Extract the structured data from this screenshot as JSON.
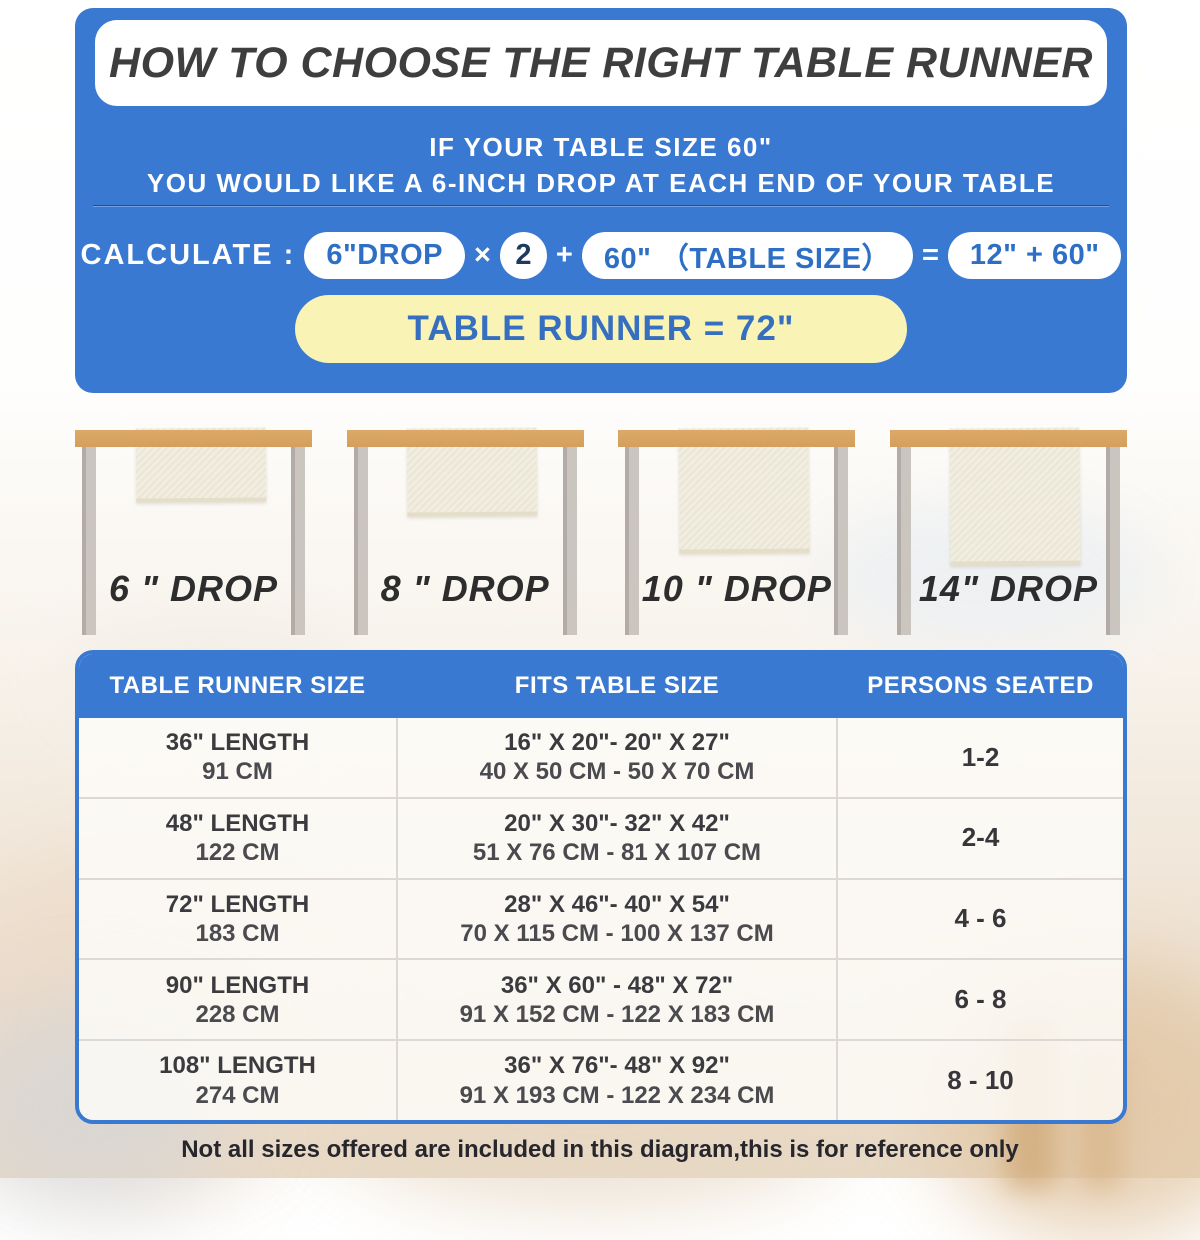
{
  "colors": {
    "panel_blue": "#3A79D1",
    "pill_text_blue": "#2D6FC4",
    "multiplier_navy": "#1D3A5F",
    "yellow_pill_bg": "#F9F3B6",
    "title_text": "#3E3E3E",
    "tabletop_tan": "#D8A462",
    "runner_cream": "#F1EDE0",
    "leg_gray": "#C6BFBA"
  },
  "header": {
    "title": "HOW TO CHOOSE THE RIGHT TABLE RUNNER",
    "subtitle_line1": "IF YOUR TABLE SIZE 60\"",
    "subtitle_line2": "YOU WOULD LIKE A 6-INCH DROP AT EACH END OF YOUR TABLE",
    "calculate_label": "CALCULATE :",
    "drop_pill": "6\"DROP",
    "times_sign": "×",
    "multiplier": "2",
    "plus_sign": "+",
    "table_size_pill": "60\" （TABLE SIZE）",
    "equals_sign": "=",
    "result_pill": "12\" + 60\"",
    "runner_result": "TABLE RUNNER = 72\""
  },
  "drop_examples": [
    {
      "label": "6 \" DROP"
    },
    {
      "label": "8 \" DROP"
    },
    {
      "label": "10 \" DROP"
    },
    {
      "label": "14\" DROP"
    }
  ],
  "size_table": {
    "columns": [
      "TABLE RUNNER SIZE",
      "FITS TABLE SIZE",
      "PERSONS SEATED"
    ],
    "rows": [
      {
        "runner_inches": "36\" LENGTH",
        "runner_cm": "91 CM",
        "fits_inches": "16\" X 20\"- 20\" X 27\"",
        "fits_cm": "40 X 50 CM - 50 X 70 CM",
        "persons": "1-2"
      },
      {
        "runner_inches": "48\" LENGTH",
        "runner_cm": "122 CM",
        "fits_inches": "20\" X 30\"- 32\" X 42\"",
        "fits_cm": "51 X 76 CM - 81 X 107 CM",
        "persons": "2-4"
      },
      {
        "runner_inches": "72\" LENGTH",
        "runner_cm": "183 CM",
        "fits_inches": "28\" X 46\"- 40\" X 54\"",
        "fits_cm": "70 X 115 CM - 100 X 137 CM",
        "persons": "4 - 6"
      },
      {
        "runner_inches": "90\" LENGTH",
        "runner_cm": "228 CM",
        "fits_inches": "36\" X 60\" - 48\" X 72\"",
        "fits_cm": "91 X 152 CM - 122 X 183 CM",
        "persons": "6 - 8"
      },
      {
        "runner_inches": "108\" LENGTH",
        "runner_cm": "274 CM",
        "fits_inches": "36\" X 76\"- 48\" X 92\"",
        "fits_cm": "91 X 193 CM - 122 X 234 CM",
        "persons": "8 - 10"
      }
    ]
  },
  "footer": {
    "note": "Not all sizes offered are included in this diagram,this is for reference only"
  }
}
